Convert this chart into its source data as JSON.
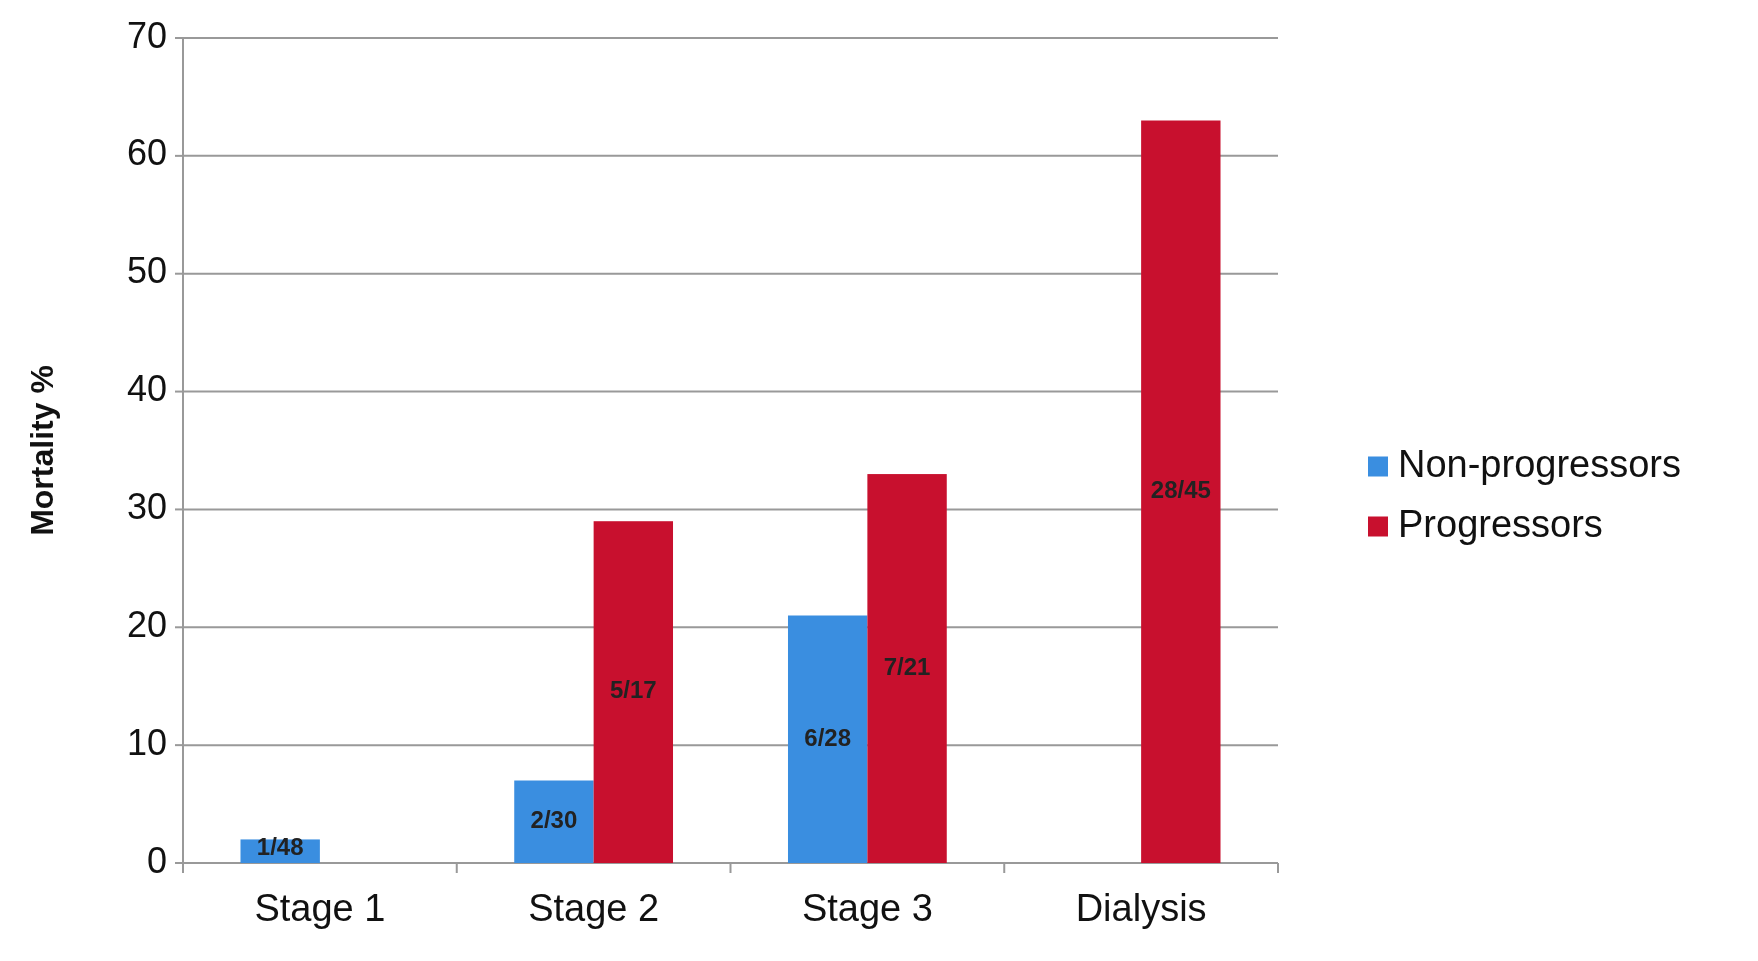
{
  "chart_data": {
    "type": "bar",
    "ylabel": "Mortality %",
    "categories": [
      "Stage 1",
      "Stage 2",
      "Stage 3",
      "Dialysis"
    ],
    "series": [
      {
        "name": "Non-progressors",
        "color": "#3a8ee0",
        "values": [
          2,
          7,
          21,
          null
        ],
        "value_labels": [
          "1/48",
          "2/30",
          "6/28",
          null
        ]
      },
      {
        "name": "Progressors",
        "color": "#c8102e",
        "values": [
          null,
          29,
          33,
          63
        ],
        "value_labels": [
          null,
          "5/17",
          "7/21",
          "28/45"
        ]
      }
    ],
    "ylim": [
      0,
      70
    ],
    "yticks": [
      0,
      10,
      20,
      30,
      40,
      50,
      60,
      70
    ],
    "grid": "y",
    "legend": "right"
  }
}
